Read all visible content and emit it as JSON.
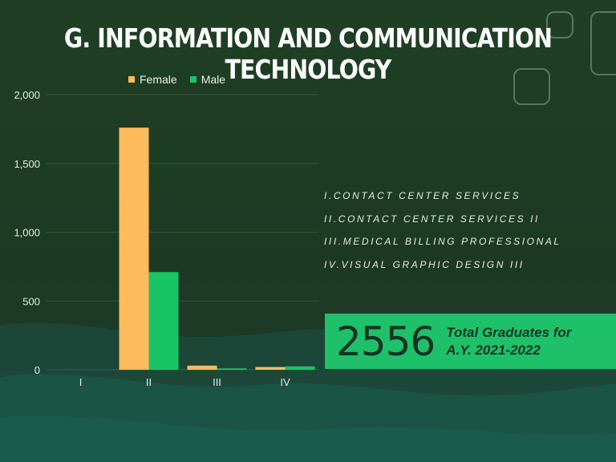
{
  "title": "G. INFORMATION AND COMMUNICATION TECHNOLOGY",
  "legend": {
    "female": "Female",
    "male": "Male"
  },
  "colors": {
    "female": "#ffbb5c",
    "male": "#18c565",
    "stat_box": "#1fc06a"
  },
  "program_list": [
    "I.CONTACT CENTER SERVICES",
    "II.CONTACT CENTER SERVICES II",
    "III.MEDICAL BILLING PROFESSIONAL",
    "IV.VISUAL GRAPHIC DESIGN III"
  ],
  "stat": {
    "number": "2556",
    "text": "Total Graduates for A.Y. 2021-2022"
  },
  "chart_data": {
    "type": "bar",
    "categories": [
      "I",
      "II",
      "III",
      "IV"
    ],
    "series": [
      {
        "name": "Female",
        "values": [
          0,
          1760,
          30,
          20
        ]
      },
      {
        "name": "Male",
        "values": [
          0,
          710,
          10,
          25
        ]
      }
    ],
    "ylim": [
      0,
      2000
    ],
    "yticks": [
      0,
      500,
      1000,
      1500,
      2000
    ],
    "ytick_labels": [
      "0",
      "500",
      "1,000",
      "1,500",
      "2,000"
    ],
    "grid": true,
    "legend_position": "top"
  }
}
